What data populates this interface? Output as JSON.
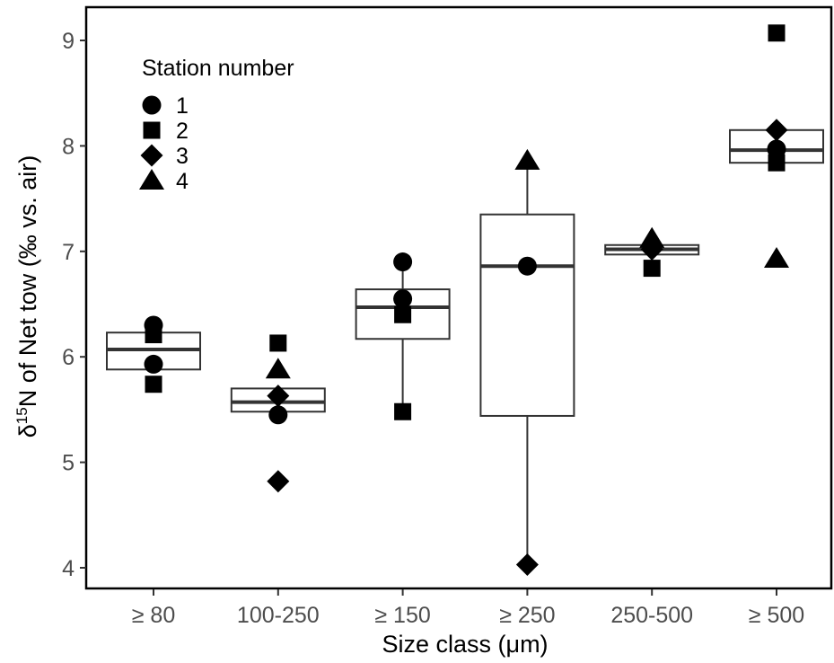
{
  "chart_data": {
    "type": "box",
    "xlabel_main": "Size class (",
    "xlabel_mu": "μ",
    "xlabel_unit": "m)",
    "ylabel_delta": "δ",
    "ylabel_sup": "15",
    "ylabel_rest": "N of Net tow (‰ vs. air)",
    "ylim": [
      3.9,
      9.3
    ],
    "yticks": [
      "4",
      "5",
      "6",
      "7",
      "8",
      "9"
    ],
    "categories": [
      "≥ 80",
      "100-250",
      "≥ 150",
      "≥ 250",
      "250-500",
      "≥ 500"
    ],
    "boxes": [
      {
        "q1": 5.88,
        "median": 6.07,
        "q3": 6.23,
        "whisker_low": 5.88,
        "whisker_high": 6.23
      },
      {
        "q1": 5.48,
        "median": 5.57,
        "q3": 5.7,
        "whisker_low": 5.48,
        "whisker_high": 5.7
      },
      {
        "q1": 6.17,
        "median": 6.47,
        "q3": 6.64,
        "whisker_low": 5.48,
        "whisker_high": 6.9
      },
      {
        "q1": 5.44,
        "median": 6.86,
        "q3": 7.35,
        "whisker_low": 4.03,
        "whisker_high": 7.86
      },
      {
        "q1": 6.97,
        "median": 7.02,
        "q3": 7.06,
        "whisker_low": 6.97,
        "whisker_high": 7.06
      },
      {
        "q1": 7.84,
        "median": 7.96,
        "q3": 8.15,
        "whisker_low": 7.84,
        "whisker_high": 8.15
      }
    ],
    "points": [
      {
        "category": "≥ 80",
        "station": "1",
        "value": 6.3
      },
      {
        "category": "≥ 80",
        "station": "1",
        "value": 5.93
      },
      {
        "category": "≥ 80",
        "station": "2",
        "value": 6.21
      },
      {
        "category": "≥ 80",
        "station": "2",
        "value": 5.74
      },
      {
        "category": "100-250",
        "station": "1",
        "value": 5.45
      },
      {
        "category": "100-250",
        "station": "2",
        "value": 6.13
      },
      {
        "category": "100-250",
        "station": "3",
        "value": 5.63
      },
      {
        "category": "100-250",
        "station": "3",
        "value": 4.82
      },
      {
        "category": "100-250",
        "station": "4",
        "value": 5.88
      },
      {
        "category": "≥ 150",
        "station": "1",
        "value": 6.9
      },
      {
        "category": "≥ 150",
        "station": "1",
        "value": 6.55
      },
      {
        "category": "≥ 150",
        "station": "2",
        "value": 6.4
      },
      {
        "category": "≥ 150",
        "station": "2",
        "value": 5.48
      },
      {
        "category": "≥ 250",
        "station": "1",
        "value": 6.86
      },
      {
        "category": "≥ 250",
        "station": "3",
        "value": 4.03
      },
      {
        "category": "≥ 250",
        "station": "4",
        "value": 7.86
      },
      {
        "category": "250-500",
        "station": "2",
        "value": 6.84
      },
      {
        "category": "250-500",
        "station": "3",
        "value": 7.02
      },
      {
        "category": "250-500",
        "station": "4",
        "value": 7.12
      },
      {
        "category": "≥ 500",
        "station": "1",
        "value": 7.97
      },
      {
        "category": "≥ 500",
        "station": "2",
        "value": 9.07
      },
      {
        "category": "≥ 500",
        "station": "2",
        "value": 7.84
      },
      {
        "category": "≥ 500",
        "station": "3",
        "value": 8.15
      },
      {
        "category": "≥ 500",
        "station": "4",
        "value": 6.93
      }
    ],
    "legend": {
      "title": "Station number",
      "placement": "top-left",
      "items": [
        {
          "label": "1",
          "shape": "circle"
        },
        {
          "label": "2",
          "shape": "square"
        },
        {
          "label": "3",
          "shape": "diamond"
        },
        {
          "label": "4",
          "shape": "triangle"
        }
      ]
    },
    "grid": false,
    "colors": {
      "marker": "#000000",
      "box_line": "#333333",
      "tick_label": "#4d4d4d",
      "frame": "#000000"
    }
  }
}
